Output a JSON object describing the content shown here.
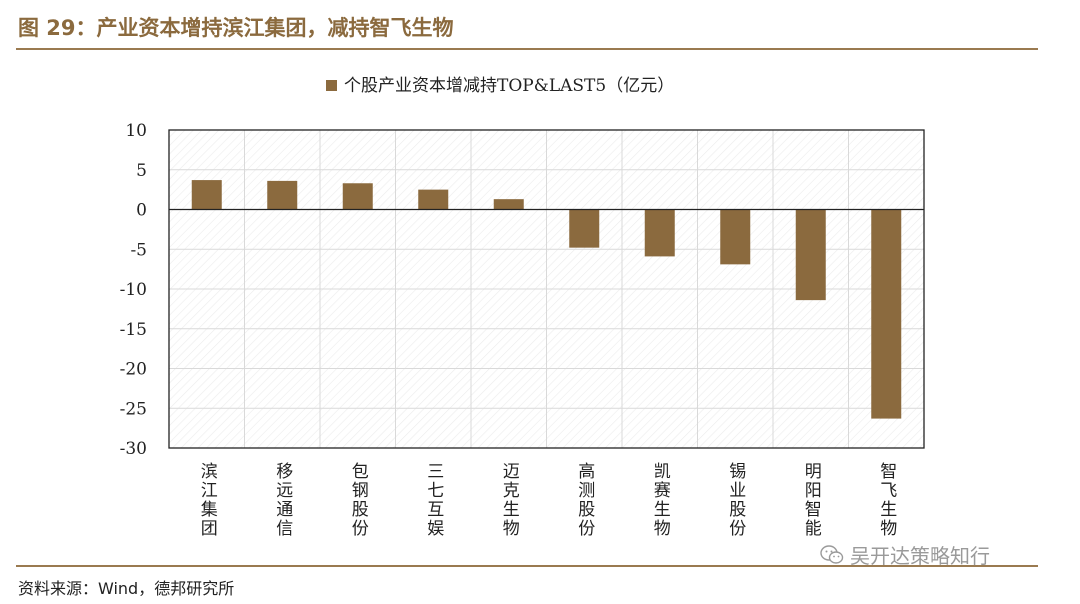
{
  "figure": {
    "title": "图 29：产业资本增持滨江集团，减持智飞生物",
    "source": "资料来源：Wind，德邦研究所",
    "watermark": "吴开达策略知行",
    "watermark_icon": "wechat-icon"
  },
  "colors": {
    "bar": "#8b6a3e",
    "accent": "#8b6a3e",
    "grid": "#d9d9d9"
  },
  "chart_data": {
    "type": "bar",
    "categories": [
      "滨江集团",
      "移远通信",
      "包钢股份",
      "三七互娱",
      "迈克生物",
      "高测股份",
      "凯赛生物",
      "锡业股份",
      "明阳智能",
      "智飞生物"
    ],
    "series": [
      {
        "name": "个股产业资本增减持TOP&LAST5（亿元）",
        "values": [
          3.7,
          3.6,
          3.3,
          2.5,
          1.3,
          -4.8,
          -5.9,
          -6.9,
          -11.4,
          -26.3
        ]
      }
    ],
    "ylim": [
      -30,
      10
    ],
    "yticks": [
      10,
      5,
      0,
      -5,
      -10,
      -15,
      -20,
      -25,
      -30
    ],
    "grid": true,
    "legend_position": "top-center",
    "xlabel": "",
    "ylabel": ""
  }
}
